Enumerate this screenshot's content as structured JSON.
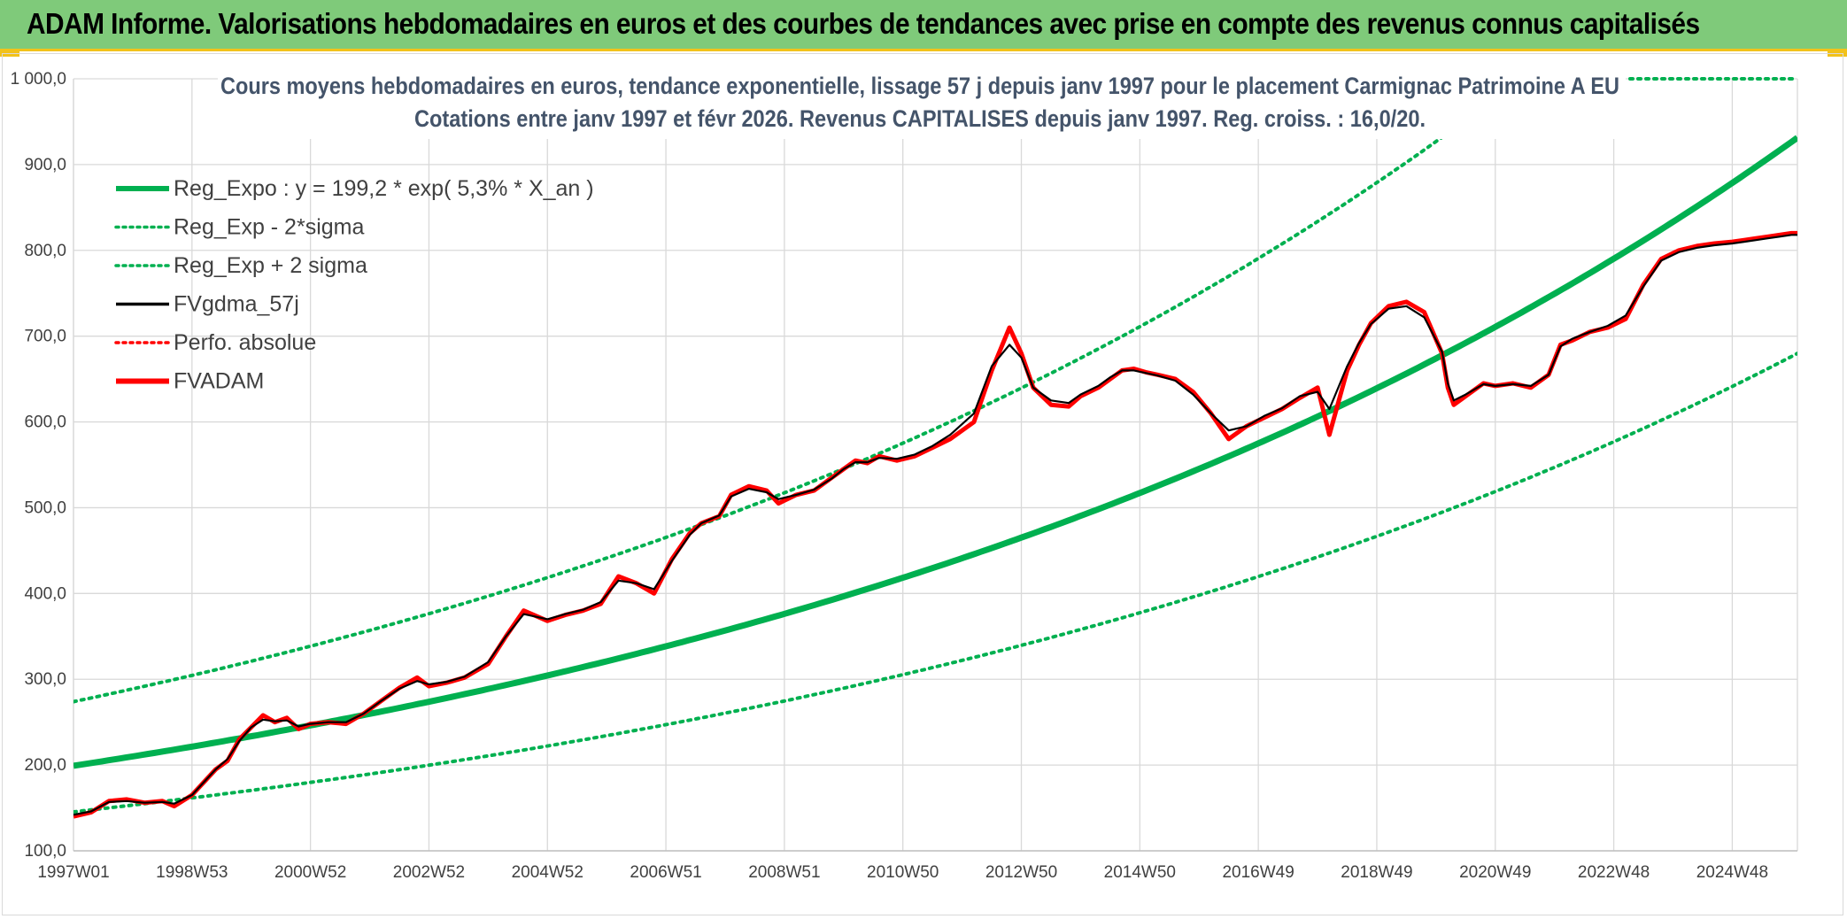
{
  "header": {
    "title": "ADAM Informe. Valorisations hebdomadaires en euros et des courbes de tendances avec prise en compte des revenus connus capitalisés"
  },
  "colors": {
    "banner": "#7fca7a",
    "accent": "#f2c21b",
    "trend": "#00b050",
    "smooth": "#000000",
    "price": "#ff0000",
    "grid": "#d9d9d9"
  },
  "chart_data": {
    "type": "line",
    "title_line1": "Cours moyens hebdomadaires en euros, tendance exponentielle, lissage 57 j depuis janv 1997 pour le placement Carmignac Patrimoine A EU",
    "title_line2": "Cotations entre janv 1997 et févr 2026. Revenus CAPITALISES depuis janv 1997. Reg. croiss. : 16,0/20.",
    "xlabel": "",
    "ylabel": "",
    "ylim": [
      100,
      1000
    ],
    "yticks": [
      "100,0",
      "200,0",
      "300,0",
      "400,0",
      "500,0",
      "600,0",
      "700,0",
      "800,0",
      "900,0",
      "1 000,0"
    ],
    "xticks": [
      "1997W01",
      "1998W53",
      "2000W52",
      "2002W52",
      "2004W52",
      "2006W51",
      "2008W51",
      "2010W50",
      "2012W50",
      "2014W50",
      "2016W49",
      "2018W49",
      "2020W49",
      "2022W48",
      "2024W48"
    ],
    "x_range_years": [
      1997.0,
      2026.1
    ],
    "grid": true,
    "legend_position": "top-left",
    "legend": [
      {
        "label": "Reg_Expo : y = 199,2 * exp( 5,3% *  X_an )",
        "style": "solid-thick",
        "color": "#00b050"
      },
      {
        "label": "Reg_Exp - 2*sigma",
        "style": "dotted",
        "color": "#00b050"
      },
      {
        "label": "Reg_Exp + 2 sigma",
        "style": "dotted",
        "color": "#00b050"
      },
      {
        "label": "FVgdma_57j",
        "style": "solid",
        "color": "#000000"
      },
      {
        "label": "Perfo. absolue",
        "style": "dotted",
        "color": "#ff0000"
      },
      {
        "label": "FVADAM",
        "style": "solid-thick",
        "color": "#ff0000"
      }
    ],
    "trend": {
      "a": 199.2,
      "b": 0.053,
      "lower_factor": 0.73,
      "upper_factor": 1.375
    },
    "series": [
      {
        "name": "FVADAM",
        "x": [
          1997.0,
          1997.3,
          1997.6,
          1997.9,
          1998.2,
          1998.5,
          1998.7,
          1999.0,
          1999.2,
          1999.4,
          1999.6,
          1999.8,
          2000.0,
          2000.2,
          2000.4,
          2000.6,
          2000.8,
          2001.0,
          2001.3,
          2001.6,
          2001.9,
          2002.2,
          2002.5,
          2002.8,
          2003.0,
          2003.3,
          2003.6,
          2004.0,
          2004.3,
          2004.6,
          2005.0,
          2005.3,
          2005.6,
          2005.9,
          2006.2,
          2006.5,
          2006.8,
          2007.1,
          2007.4,
          2007.6,
          2007.9,
          2008.1,
          2008.4,
          2008.7,
          2008.9,
          2009.2,
          2009.5,
          2009.8,
          2010.0,
          2010.2,
          2010.4,
          2010.6,
          2010.9,
          2011.2,
          2011.5,
          2011.8,
          2012.2,
          2012.5,
          2012.8,
          2013.0,
          2013.2,
          2013.5,
          2013.8,
          2014.0,
          2014.3,
          2014.5,
          2014.7,
          2014.9,
          2015.1,
          2015.3,
          2015.6,
          2015.9,
          2016.2,
          2016.5,
          2016.8,
          2017.1,
          2017.4,
          2017.7,
          2018.0,
          2018.2,
          2018.5,
          2018.7,
          2018.9,
          2019.2,
          2019.5,
          2019.8,
          2020.1,
          2020.2,
          2020.3,
          2020.5,
          2020.8,
          2021.0,
          2021.3,
          2021.6,
          2021.9,
          2022.1,
          2022.3,
          2022.6,
          2022.9,
          2023.2,
          2023.5,
          2023.8,
          2024.1,
          2024.4,
          2024.7,
          2025.0,
          2025.2,
          2025.4,
          2025.6,
          2025.8,
          2026.0,
          2026.1
        ],
        "values": [
          140,
          145,
          158,
          160,
          156,
          158,
          152,
          165,
          180,
          195,
          205,
          230,
          244,
          258,
          250,
          255,
          242,
          248,
          250,
          248,
          260,
          275,
          290,
          302,
          292,
          296,
          302,
          318,
          350,
          380,
          368,
          375,
          380,
          388,
          420,
          412,
          400,
          440,
          470,
          482,
          490,
          515,
          525,
          520,
          505,
          515,
          520,
          535,
          545,
          555,
          552,
          560,
          555,
          560,
          570,
          580,
          600,
          660,
          710,
          680,
          640,
          620,
          618,
          630,
          640,
          650,
          660,
          662,
          658,
          655,
          650,
          635,
          610,
          580,
          595,
          605,
          615,
          628,
          640,
          585,
          660,
          690,
          715,
          735,
          740,
          728,
          680,
          640,
          620,
          630,
          645,
          642,
          645,
          640,
          655,
          690,
          695,
          705,
          710,
          720,
          760,
          790,
          800,
          805,
          808,
          810,
          812,
          814,
          816,
          818,
          820,
          820
        ]
      },
      {
        "name": "FVgdma_57j",
        "x": [
          1997.0,
          1997.3,
          1997.6,
          1997.9,
          1998.2,
          1998.5,
          1998.7,
          1999.0,
          1999.2,
          1999.4,
          1999.6,
          1999.8,
          2000.0,
          2000.2,
          2000.4,
          2000.6,
          2000.8,
          2001.0,
          2001.3,
          2001.6,
          2001.9,
          2002.2,
          2002.5,
          2002.8,
          2003.0,
          2003.3,
          2003.6,
          2004.0,
          2004.3,
          2004.6,
          2005.0,
          2005.3,
          2005.6,
          2005.9,
          2006.2,
          2006.5,
          2006.8,
          2007.1,
          2007.4,
          2007.6,
          2007.9,
          2008.1,
          2008.4,
          2008.7,
          2008.9,
          2009.2,
          2009.5,
          2009.8,
          2010.0,
          2010.2,
          2010.4,
          2010.6,
          2010.9,
          2011.2,
          2011.5,
          2011.8,
          2012.2,
          2012.5,
          2012.8,
          2013.0,
          2013.2,
          2013.5,
          2013.8,
          2014.0,
          2014.3,
          2014.5,
          2014.7,
          2014.9,
          2015.1,
          2015.3,
          2015.6,
          2015.9,
          2016.2,
          2016.5,
          2016.8,
          2017.1,
          2017.4,
          2017.7,
          2018.0,
          2018.2,
          2018.5,
          2018.7,
          2018.9,
          2019.2,
          2019.5,
          2019.8,
          2020.1,
          2020.2,
          2020.3,
          2020.5,
          2020.8,
          2021.0,
          2021.3,
          2021.6,
          2021.9,
          2022.1,
          2022.3,
          2022.6,
          2022.9,
          2023.2,
          2023.5,
          2023.8,
          2024.1,
          2024.4,
          2024.7,
          2025.0,
          2025.2,
          2025.4,
          2025.6,
          2025.8,
          2026.0,
          2026.1
        ],
        "values": [
          142,
          146,
          157,
          158,
          156,
          157,
          155,
          165,
          180,
          195,
          207,
          228,
          244,
          253,
          251,
          252,
          245,
          248,
          250,
          250,
          260,
          275,
          289,
          298,
          294,
          297,
          303,
          320,
          350,
          376,
          370,
          376,
          381,
          390,
          415,
          412,
          405,
          438,
          468,
          482,
          491,
          513,
          522,
          518,
          510,
          515,
          521,
          534,
          545,
          553,
          553,
          558,
          557,
          562,
          572,
          585,
          610,
          665,
          690,
          675,
          640,
          625,
          622,
          632,
          642,
          652,
          660,
          660,
          657,
          654,
          648,
          632,
          610,
          590,
          595,
          607,
          616,
          630,
          635,
          615,
          665,
          692,
          714,
          732,
          735,
          722,
          682,
          645,
          625,
          632,
          644,
          642,
          644,
          642,
          655,
          688,
          697,
          705,
          712,
          724,
          758,
          788,
          798,
          803,
          806,
          808,
          810,
          812,
          814,
          816,
          818,
          818
        ]
      }
    ]
  }
}
